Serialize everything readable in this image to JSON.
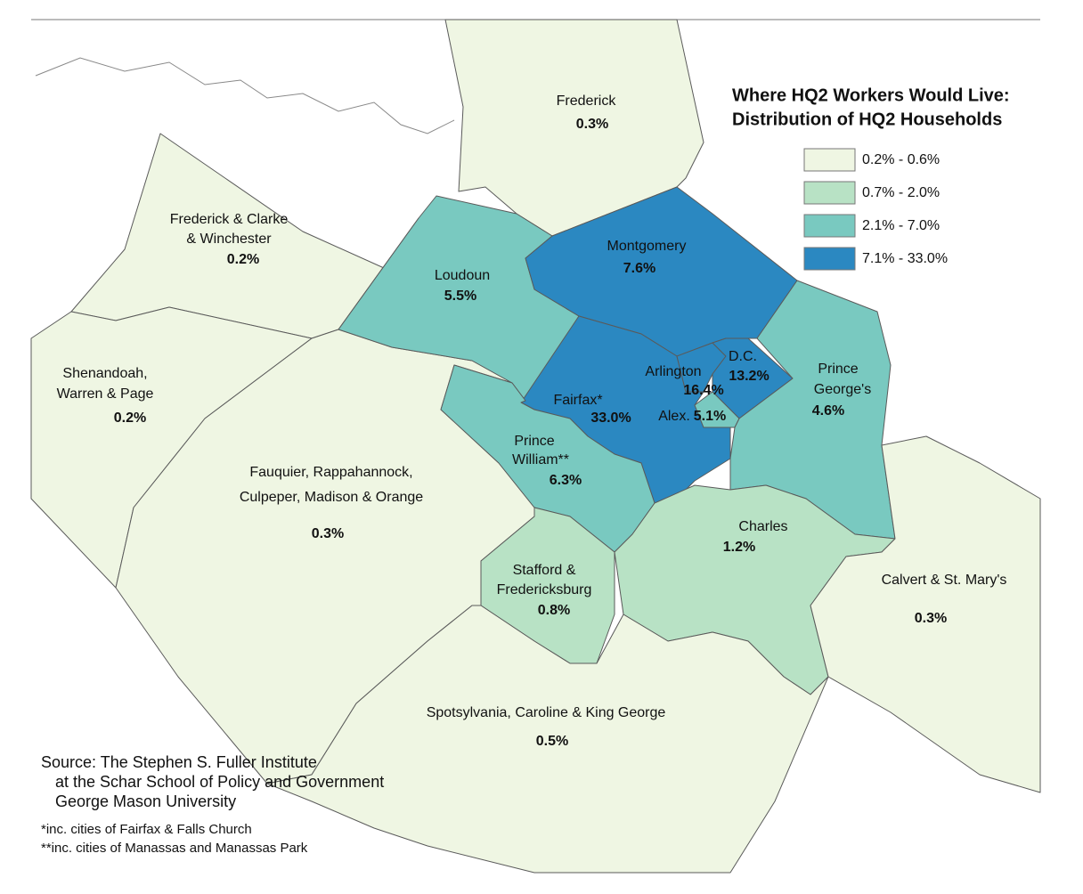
{
  "map": {
    "title": [
      "Where HQ2 Workers Would Live:",
      "Distribution of HQ2 Households"
    ],
    "legend": [
      {
        "label": "0.2% - 0.6%",
        "min": 0.2,
        "max": 0.6,
        "color": "#eff6e3"
      },
      {
        "label": "0.7% - 2.0%",
        "min": 0.7,
        "max": 2.0,
        "color": "#b8e2c5"
      },
      {
        "label": "2.1% - 7.0%",
        "min": 2.1,
        "max": 7.0,
        "color": "#79c9c0"
      },
      {
        "label": "7.1% - 33.0%",
        "min": 7.1,
        "max": 33.0,
        "color": "#2b88c1"
      }
    ],
    "regions": [
      {
        "name": [
          "Frederick"
        ],
        "value": 0.3,
        "value_label": "0.3%"
      },
      {
        "name": [
          "Frederick & Clarke",
          "& Winchester"
        ],
        "value": 0.2,
        "value_label": "0.2%"
      },
      {
        "name": [
          "Shenandoah,",
          "Warren & Page"
        ],
        "value": 0.2,
        "value_label": "0.2%"
      },
      {
        "name": [
          "Fauquier, Rappahannock,",
          "Culpeper, Madison & Orange"
        ],
        "value": 0.3,
        "value_label": "0.3%"
      },
      {
        "name": [
          "Loudoun"
        ],
        "value": 5.5,
        "value_label": "5.5%"
      },
      {
        "name": [
          "Montgomery"
        ],
        "value": 7.6,
        "value_label": "7.6%"
      },
      {
        "name": [
          "Fairfax*"
        ],
        "value": 33.0,
        "value_label": "33.0%"
      },
      {
        "name": [
          "Arlington"
        ],
        "value": 16.4,
        "value_label": "16.4%"
      },
      {
        "name": [
          "D.C."
        ],
        "value": 13.2,
        "value_label": "13.2%"
      },
      {
        "name": [
          "Alex."
        ],
        "value": 5.1,
        "value_label": "5.1%"
      },
      {
        "name": [
          "Prince",
          "George's"
        ],
        "value": 4.6,
        "value_label": "4.6%"
      },
      {
        "name": [
          "Prince",
          "William**"
        ],
        "value": 6.3,
        "value_label": "6.3%"
      },
      {
        "name": [
          "Stafford &",
          "Fredericksburg"
        ],
        "value": 0.8,
        "value_label": "0.8%"
      },
      {
        "name": [
          "Charles"
        ],
        "value": 1.2,
        "value_label": "1.2%"
      },
      {
        "name": [
          "Calvert & St. Mary's"
        ],
        "value": 0.3,
        "value_label": "0.3%"
      },
      {
        "name": [
          "Spotsylvania, Caroline & King George"
        ],
        "value": 0.5,
        "value_label": "0.5%"
      }
    ],
    "source": [
      "Source: The Stephen S. Fuller Institute",
      "at the Schar School of Policy and Government",
      "George Mason University"
    ],
    "notes": [
      "*inc. cities of Fairfax & Falls Church",
      "**inc. cities of Manassas and Manassas Park"
    ]
  }
}
